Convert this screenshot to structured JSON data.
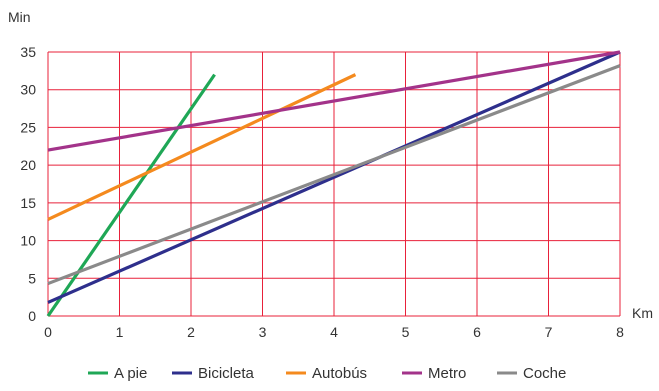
{
  "chart_data": {
    "type": "line",
    "xlabel": "Km",
    "ylabel": "Min",
    "xlim": [
      0,
      8
    ],
    "ylim": [
      0,
      35
    ],
    "x_ticks": [
      0,
      1,
      2,
      3,
      4,
      5,
      6,
      7,
      8
    ],
    "y_ticks": [
      0,
      5,
      10,
      15,
      20,
      25,
      30,
      35
    ],
    "grid": true,
    "grid_color": "#e8213a",
    "legend_position": "bottom",
    "series": [
      {
        "name": "A pie",
        "color": "#1fa756",
        "x": [
          0,
          2.33
        ],
        "y": [
          0,
          32
        ]
      },
      {
        "name": "Bicicleta",
        "color": "#2e2f8c",
        "x": [
          0,
          8
        ],
        "y": [
          1.8,
          35
        ]
      },
      {
        "name": "Autobús",
        "color": "#f48a1e",
        "x": [
          0,
          4.3
        ],
        "y": [
          12.8,
          32
        ]
      },
      {
        "name": "Metro",
        "color": "#a3338a",
        "x": [
          0,
          8
        ],
        "y": [
          22,
          35
        ]
      },
      {
        "name": "Coche",
        "color": "#8a8a8a",
        "x": [
          0,
          8
        ],
        "y": [
          4.3,
          33.2
        ]
      }
    ]
  }
}
